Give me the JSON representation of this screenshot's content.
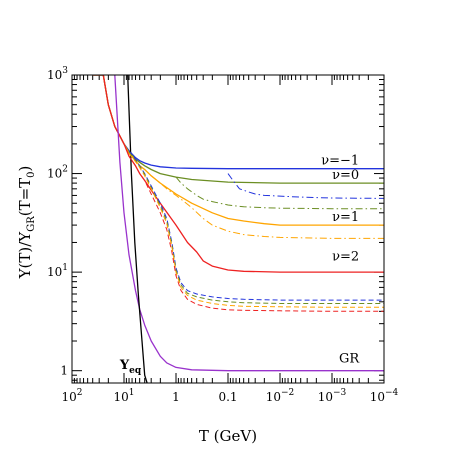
{
  "chart_data": {
    "type": "line",
    "title": "",
    "xlabel": "T (GeV)",
    "ylabel": "Y(T) / Y_GR(T=T_0)",
    "ylabel_parts": {
      "y": "Y(T)",
      "sep": "/Y",
      "sub1": "GR",
      "rest": "(T=T",
      "sub2": "0",
      "close": ")"
    },
    "x_scale": "log",
    "x_reversed": true,
    "xlim": [
      100,
      0.0001
    ],
    "y_scale": "log",
    "ylim": [
      0.75,
      1000
    ],
    "x_ticks": [
      {
        "v": 100,
        "base": "10",
        "exp": "2"
      },
      {
        "v": 10,
        "base": "10",
        "exp": "1"
      },
      {
        "v": 1,
        "base": "1",
        "exp": ""
      },
      {
        "v": 0.1,
        "base": "0.1",
        "exp": ""
      },
      {
        "v": 0.01,
        "base": "10",
        "exp": "−2"
      },
      {
        "v": 0.001,
        "base": "10",
        "exp": "−3"
      },
      {
        "v": 0.0001,
        "base": "10",
        "exp": "−4"
      }
    ],
    "y_ticks": [
      {
        "v": 1,
        "base": "1",
        "exp": ""
      },
      {
        "v": 10,
        "base": "10",
        "exp": "1"
      },
      {
        "v": 100,
        "base": "10",
        "exp": "2"
      },
      {
        "v": 1000,
        "base": "10",
        "exp": "3"
      }
    ],
    "grid": false,
    "legend": "inline labels at right",
    "series": [
      {
        "name": "ν=−1",
        "style": "solid",
        "color": "#2233dd",
        "label_at": [
          0.0003,
          112
        ],
        "x": [
          40,
          25,
          20,
          15,
          12,
          10,
          8,
          6,
          5,
          4,
          3,
          2,
          1,
          0.5,
          0.1,
          0.01,
          0.001,
          0.0001
        ],
        "y": [
          1000,
          1000,
          500,
          300,
          240,
          200,
          170,
          145,
          135,
          128,
          122,
          117,
          114,
          113,
          112,
          112,
          112,
          112
        ]
      },
      {
        "name": "ν=0",
        "style": "solid",
        "color": "#6b8e23",
        "label_at": [
          0.0003,
          80
        ],
        "x": [
          40,
          25,
          20,
          15,
          12,
          10,
          8,
          6,
          5,
          4,
          3,
          2,
          1,
          0.5,
          0.2,
          0.1,
          0.01,
          0.001,
          0.0001
        ],
        "y": [
          1000,
          1000,
          500,
          300,
          240,
          200,
          165,
          140,
          130,
          120,
          110,
          100,
          92,
          87,
          84,
          82,
          80,
          80,
          80
        ]
      },
      {
        "name": "ν=1",
        "style": "solid",
        "color": "#ffa500",
        "label_at": [
          0.0003,
          30
        ],
        "x": [
          40,
          25,
          20,
          15,
          12,
          10,
          8,
          6,
          5,
          4,
          3,
          2,
          1,
          0.5,
          0.2,
          0.1,
          0.05,
          0.02,
          0.01,
          0.001,
          0.0001
        ],
        "y": [
          1000,
          1000,
          500,
          300,
          240,
          200,
          160,
          135,
          120,
          110,
          95,
          80,
          62,
          50,
          40,
          35,
          33,
          31,
          30,
          30,
          30
        ]
      },
      {
        "name": "ν=2",
        "style": "solid",
        "color": "#ee2222",
        "label_at": [
          0.0003,
          12
        ],
        "x": [
          40,
          25,
          20,
          15,
          12,
          10,
          8,
          6,
          5,
          4,
          3,
          2,
          1,
          0.6,
          0.4,
          0.3,
          0.2,
          0.1,
          0.05,
          0.01,
          0.001,
          0.0001
        ],
        "y": [
          1000,
          1000,
          500,
          300,
          240,
          200,
          150,
          120,
          100,
          85,
          68,
          50,
          30,
          20,
          16,
          13,
          11.5,
          10.5,
          10.2,
          10,
          10,
          10
        ]
      },
      {
        "name": "GR",
        "style": "solid",
        "color": "#9933cc",
        "label_at": [
          0.0003,
          1.1
        ],
        "x": [
          15,
          12,
          10,
          8,
          6,
          5,
          4,
          3,
          2,
          1.5,
          1,
          0.5,
          0.2,
          0.1,
          0.01,
          0.001,
          0.0001
        ],
        "y": [
          1000,
          130,
          40,
          15,
          6.5,
          4.2,
          2.9,
          2.0,
          1.4,
          1.2,
          1.08,
          1.02,
          1.01,
          1.0,
          1.0,
          1.0,
          1.0
        ]
      },
      {
        "name": "Y_eq",
        "style": "solid",
        "color": "#000000",
        "label_at": [
          7.5,
          0.95
        ],
        "x": [
          8.5,
          7.2,
          6.2,
          5.3,
          4.5,
          4.0,
          3.6
        ],
        "y": [
          1000,
          100,
          20,
          6,
          2,
          0.9,
          0.75
        ]
      },
      {
        "style": "dashdot",
        "color": "#2233dd",
        "x": [
          0.1,
          0.08,
          0.06,
          0.04,
          0.03,
          0.02,
          0.01,
          0.005,
          0.002,
          0.001,
          0.0001
        ],
        "y": [
          100,
          85,
          70,
          65,
          62,
          60,
          59,
          58,
          57,
          56.5,
          56
        ]
      },
      {
        "style": "dashdot",
        "color": "#6b8e23",
        "x": [
          1,
          0.8,
          0.6,
          0.4,
          0.3,
          0.2,
          0.1,
          0.05,
          0.02,
          0.01,
          0.001,
          0.0001
        ],
        "y": [
          92,
          80,
          70,
          60,
          55,
          52,
          48,
          46,
          45,
          44.5,
          44,
          44
        ]
      },
      {
        "style": "dashdot",
        "color": "#ffa500",
        "x": [
          5,
          4,
          3,
          2,
          1.5,
          1,
          0.7,
          0.5,
          0.3,
          0.2,
          0.1,
          0.05,
          0.02,
          0.01,
          0.001,
          0.0001
        ],
        "y": [
          120,
          110,
          95,
          80,
          70,
          60,
          52,
          45,
          35,
          30,
          26,
          24,
          23,
          22.5,
          22,
          22
        ]
      },
      {
        "style": "dashed",
        "color": "#2233dd",
        "x": [
          8,
          6,
          5,
          4,
          3,
          2,
          1.5,
          1.2,
          1,
          0.8,
          0.6,
          0.4,
          0.2,
          0.1,
          0.05,
          0.01,
          0.001,
          0.0001
        ],
        "y": [
          170,
          140,
          120,
          100,
          75,
          50,
          35,
          20,
          11,
          7.8,
          6.5,
          6.0,
          5.6,
          5.4,
          5.3,
          5.2,
          5.2,
          5.2
        ]
      },
      {
        "style": "dashed",
        "color": "#6b8e23",
        "x": [
          8,
          6,
          5,
          4,
          3,
          2,
          1.5,
          1.2,
          1,
          0.8,
          0.6,
          0.4,
          0.2,
          0.1,
          0.05,
          0.01,
          0.001,
          0.0001
        ],
        "y": [
          165,
          135,
          118,
          98,
          72,
          47,
          33,
          19,
          10.5,
          7.4,
          6.1,
          5.6,
          5.2,
          5.0,
          4.9,
          4.8,
          4.8,
          4.8
        ]
      },
      {
        "style": "dashed",
        "color": "#ffa500",
        "x": [
          8,
          6,
          5,
          4,
          3,
          2,
          1.5,
          1.2,
          1,
          0.8,
          0.6,
          0.4,
          0.2,
          0.1,
          0.05,
          0.01,
          0.001,
          0.0001
        ],
        "y": [
          160,
          132,
          115,
          95,
          70,
          45,
          31,
          18,
          10,
          7.0,
          5.8,
          5.2,
          4.8,
          4.6,
          4.5,
          4.45,
          4.4,
          4.4
        ]
      },
      {
        "style": "dashed",
        "color": "#ee2222",
        "x": [
          8,
          6,
          5,
          4,
          3,
          2,
          1.5,
          1.2,
          1,
          0.8,
          0.6,
          0.4,
          0.2,
          0.1,
          0.05,
          0.01,
          0.001,
          0.0001
        ],
        "y": [
          150,
          120,
          100,
          85,
          62,
          40,
          27,
          16,
          9.2,
          6.5,
          5.3,
          4.7,
          4.3,
          4.15,
          4.1,
          4.05,
          4.0,
          4.0
        ]
      }
    ]
  }
}
